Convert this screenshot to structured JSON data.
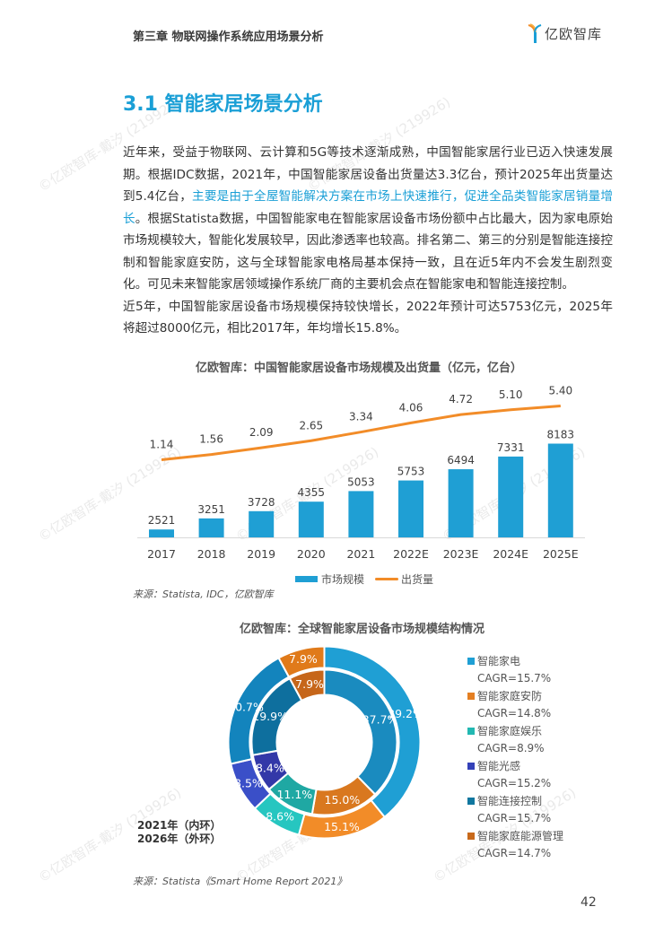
{
  "header": {
    "chapter": "第三章 物联网操作系统应用场景分析",
    "logo_text": "亿欧智库"
  },
  "section_title": "3.1 智能家居场景分析",
  "body": {
    "p1_a": "近年来，受益于物联网、云计算和5G等技术逐渐成熟，中国智能家居行业已迈入快速发展期。根据IDC数据，2021年，中国智能家居设备出货量达3.3亿台，预计2025年出货量达到5.4亿台，",
    "p1_highlight": "主要是由于全屋智能解决方案在市场上快速推行，促进全品类智能家居销量增长",
    "p1_b": "。根据Statista数据，中国智能家电在智能家居设备市场份额中占比最大，因为家电原始市场规模较大，智能化发展较早，因此渗透率也较高。排名第二、第三的分别是智能连接控制和智能家庭安防，这与全球智能家电格局基本保持一致，且在近5年内不会发生剧烈变化。可见未来智能家居领域操作系统厂商的主要机会点在智能家电和智能连接控制。",
    "p2": "近5年，中国智能家居设备市场规模保持较快增长，2022年预计可达5753亿元，2025年将超过8000亿元，相比2017年，年均增长15.8%。"
  },
  "chart_data": [
    {
      "type": "bar",
      "title": "亿欧智库：中国智能家居设备市场规模及出货量（亿元，亿台）",
      "categories": [
        "2017",
        "2018",
        "2019",
        "2020",
        "2021",
        "2022E",
        "2023E",
        "2024E",
        "2025E"
      ],
      "series": [
        {
          "name": "市场规模",
          "type": "bar",
          "color": "#1f9fd4",
          "values": [
            2521,
            3251,
            3728,
            4355,
            5053,
            5753,
            6494,
            7331,
            8183
          ],
          "labels": [
            "2521",
            "3251",
            "3728",
            "4355",
            "5053",
            "5753",
            "6494",
            "7331",
            "8183"
          ]
        },
        {
          "name": "出货量",
          "type": "line",
          "color": "#f28c28",
          "values": [
            1.14,
            1.56,
            2.09,
            2.65,
            3.34,
            4.06,
            4.72,
            5.1,
            5.4
          ],
          "labels": [
            "1.14",
            "1.56",
            "2.09",
            "2.65",
            "3.34",
            "4.06",
            "4.72",
            "5.10",
            "5.40"
          ]
        }
      ],
      "ylim": [
        2000,
        12000
      ],
      "y2lim": [
        -5,
        7
      ],
      "grid": false,
      "legend": "bottom",
      "source": "来源：Statista, IDC，亿欧智库"
    },
    {
      "type": "pie",
      "title": "亿欧智库：全球智能家居设备市场规模结构情况",
      "ring_labels": [
        "2021年（内环）",
        "2026年（外环）"
      ],
      "categories": [
        "智能家电",
        "智能家庭安防",
        "智能家庭娱乐",
        "智能光感",
        "智能连接控制",
        "智能家庭能源管理"
      ],
      "cagr": [
        "CAGR=15.7%",
        "CAGR=14.8%",
        "CAGR=8.9%",
        "CAGR=15.2%",
        "CAGR=15.7%",
        "CAGR=14.7%"
      ],
      "colors": [
        "#1f9fd4",
        "#e47f22",
        "#22b8b2",
        "#3441b8",
        "#10779f",
        "#c8691a"
      ],
      "series": [
        {
          "name": "2021年（内环）",
          "values": [
            37.7,
            15.0,
            11.1,
            8.4,
            19.9,
            7.9
          ],
          "labels": [
            "37.7%",
            "15.0%",
            "11.1%",
            "8.4%",
            "19.9%",
            "7.9%"
          ],
          "colors": [
            "#1a8bbf",
            "#d9781f",
            "#1fa8a3",
            "#3338a8",
            "#0e6f9e",
            "#c6661a"
          ]
        },
        {
          "name": "2026年（外环）",
          "values": [
            39.2,
            15.1,
            8.6,
            8.5,
            20.7,
            7.9
          ],
          "labels": [
            "39.2%",
            "15.1%",
            "8.6%",
            "8.5%",
            "20.7%",
            "7.9%"
          ],
          "colors": [
            "#1f9fd4",
            "#f28c28",
            "#26c6c0",
            "#3a4fc8",
            "#1384bd",
            "#e07a1a"
          ]
        }
      ],
      "legend": "right",
      "source": "来源：Statista《Smart Home Report 2021》"
    }
  ],
  "watermark": "©亿欧智库-戴汐 (219926)",
  "page_number": "42"
}
